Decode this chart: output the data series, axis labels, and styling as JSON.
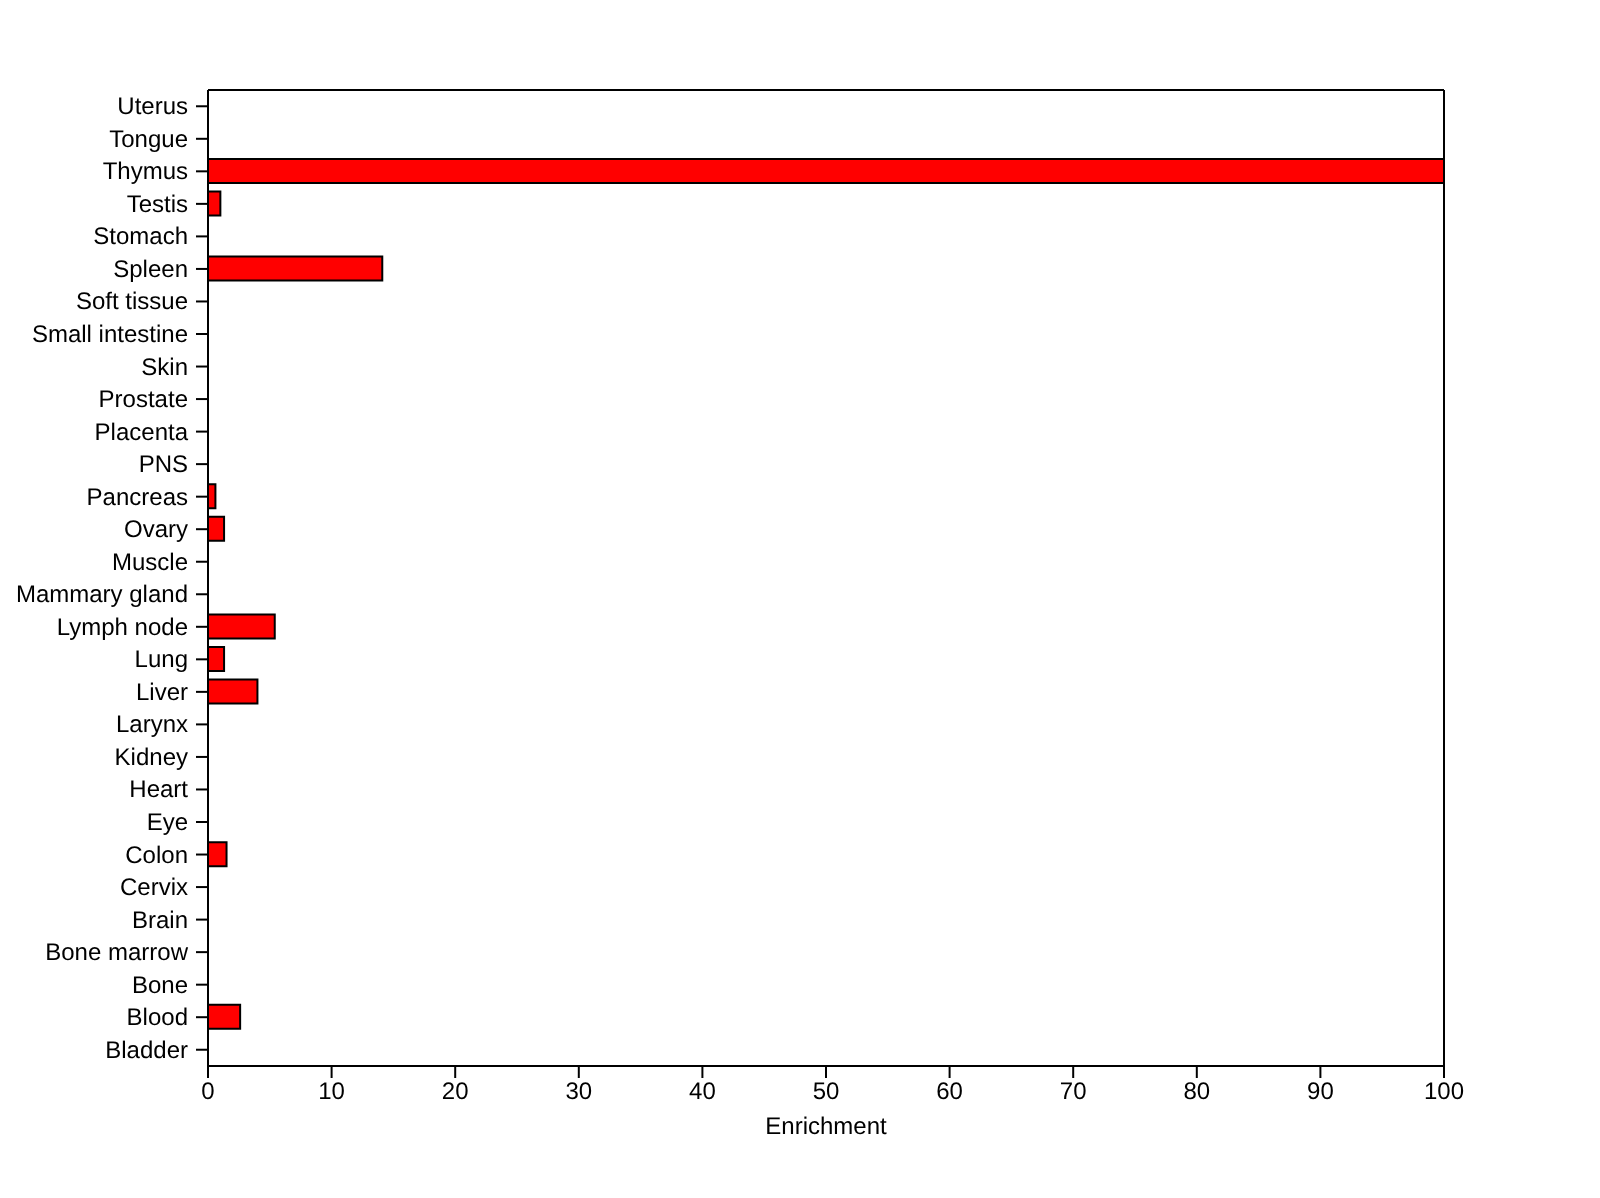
{
  "chart_data": {
    "type": "bar",
    "orientation": "horizontal",
    "xlabel": "Enrichment",
    "categories": [
      "Uterus",
      "Tongue",
      "Thymus",
      "Testis",
      "Stomach",
      "Spleen",
      "Soft tissue",
      "Small intestine",
      "Skin",
      "Prostate",
      "Placenta",
      "PNS",
      "Pancreas",
      "Ovary",
      "Muscle",
      "Mammary gland",
      "Lymph node",
      "Lung",
      "Liver",
      "Larynx",
      "Kidney",
      "Heart",
      "Eye",
      "Colon",
      "Cervix",
      "Brain",
      "Bone marrow",
      "Bone",
      "Blood",
      "Bladder"
    ],
    "values": [
      0,
      0,
      100,
      1,
      0,
      14.1,
      0,
      0,
      0,
      0,
      0,
      0,
      0.6,
      1.3,
      0,
      0,
      5.4,
      1.3,
      4,
      0,
      0,
      0,
      0,
      1.5,
      0,
      0,
      0,
      0,
      2.6,
      0
    ],
    "color": "#ff0000",
    "xlim": [
      0,
      100
    ],
    "xticks": [
      0,
      10,
      20,
      30,
      40,
      50,
      60,
      70,
      80,
      90,
      100
    ]
  }
}
